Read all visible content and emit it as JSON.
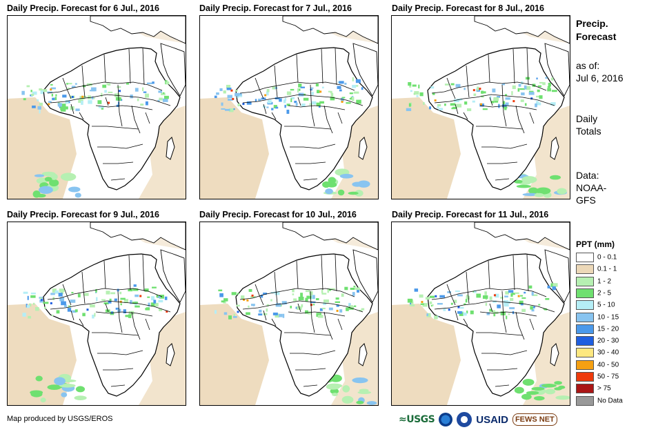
{
  "panels": [
    {
      "title": "Daily Precip. Forecast for 6 Jul., 2016"
    },
    {
      "title": "Daily Precip. Forecast for 7 Jul., 2016"
    },
    {
      "title": "Daily Precip. Forecast for 8 Jul., 2016"
    },
    {
      "title": "Daily Precip. Forecast for 9 Jul., 2016"
    },
    {
      "title": "Daily Precip. Forecast for 10 Jul., 2016"
    },
    {
      "title": "Daily Precip. Forecast for 11 Jul., 2016"
    }
  ],
  "sidebar": {
    "title_line1": "Precip.",
    "title_line2": "Forecast",
    "asof_line1": "as of:",
    "asof_line2": "Jul 6, 2016",
    "totals_line1": "Daily",
    "totals_line2": "Totals",
    "data_line1": "Data:",
    "data_line2": "NOAA-",
    "data_line3": "GFS"
  },
  "legend": {
    "title": "PPT (mm)",
    "items": [
      {
        "label": "0 - 0.1",
        "color": "#ffffff"
      },
      {
        "label": "0.1 - 1",
        "color": "#ecd8b8"
      },
      {
        "label": "1 - 2",
        "color": "#b6f0b2"
      },
      {
        "label": "2 - 5",
        "color": "#6fe070"
      },
      {
        "label": "5 - 10",
        "color": "#b5eef6"
      },
      {
        "label": "10 - 15",
        "color": "#88c4f0"
      },
      {
        "label": "15 - 20",
        "color": "#4b99ea"
      },
      {
        "label": "20 - 30",
        "color": "#1f5fe0"
      },
      {
        "label": "30 - 40",
        "color": "#fde880"
      },
      {
        "label": "40 - 50",
        "color": "#f5a012"
      },
      {
        "label": "50 - 75",
        "color": "#ee3a0c"
      },
      {
        "label": "> 75",
        "color": "#aa1515"
      },
      {
        "label": "No Data",
        "color": "#999999"
      }
    ]
  },
  "footer": {
    "credit": "Map produced by USGS/EROS",
    "logo_usgs": "≈USGS",
    "logo_usaid": "USAID",
    "logo_fews": "FEWS NET"
  }
}
